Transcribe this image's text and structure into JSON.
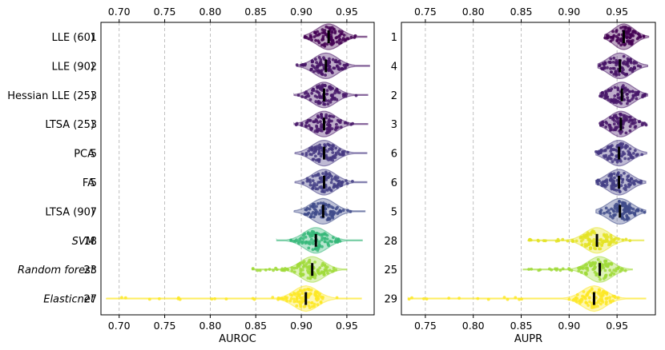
{
  "chart_data": [
    {
      "type": "violin",
      "xlabel": "AUROC",
      "xlim": [
        0.68,
        0.98
      ],
      "xticks": [
        0.7,
        0.75,
        0.8,
        0.85,
        0.9,
        0.95
      ],
      "xtick_labels": [
        "0.70",
        "0.75",
        "0.80",
        "0.85",
        "0.90",
        "0.95"
      ],
      "grid": "vertical-dashed",
      "rows": [
        {
          "method": "LLE (60)",
          "italic": false,
          "rank": "1",
          "median": 0.93,
          "min": 0.903,
          "max": 0.972,
          "color": "#440154"
        },
        {
          "method": "LLE (90)",
          "italic": false,
          "rank": "2",
          "median": 0.927,
          "min": 0.895,
          "max": 0.975,
          "color": "#471466"
        },
        {
          "method": "Hessian LLE (25)",
          "italic": false,
          "rank": "3",
          "median": 0.925,
          "min": 0.892,
          "max": 0.973,
          "color": "#48186a"
        },
        {
          "method": "LTSA (25)",
          "italic": false,
          "rank": "3",
          "median": 0.925,
          "min": 0.892,
          "max": 0.973,
          "color": "#48186a"
        },
        {
          "method": "PCA",
          "italic": false,
          "rank": "5",
          "median": 0.925,
          "min": 0.893,
          "max": 0.972,
          "color": "#453781"
        },
        {
          "method": "FA",
          "italic": false,
          "rank": "5",
          "median": 0.925,
          "min": 0.893,
          "max": 0.972,
          "color": "#433e85"
        },
        {
          "method": "LTSA (90)",
          "italic": false,
          "rank": "7",
          "median": 0.924,
          "min": 0.892,
          "max": 0.97,
          "color": "#3e4a89"
        },
        {
          "method": "SVM",
          "italic": true,
          "rank": "18",
          "median": 0.916,
          "min": 0.873,
          "max": 0.967,
          "color": "#35b779"
        },
        {
          "method": "Random forest",
          "italic": true,
          "rank": "23",
          "median": 0.912,
          "min": 0.846,
          "max": 0.95,
          "color": "#a0da39"
        },
        {
          "method": "Elasticnet",
          "italic": true,
          "rank": "27",
          "median": 0.905,
          "min": 0.686,
          "max": 0.966,
          "color": "#fde725"
        }
      ]
    },
    {
      "type": "violin",
      "xlabel": "AUPR",
      "xlim": [
        0.725,
        0.99
      ],
      "xticks": [
        0.75,
        0.8,
        0.85,
        0.9,
        0.95
      ],
      "xtick_labels": [
        "0.75",
        "0.80",
        "0.85",
        "0.90",
        "0.95"
      ],
      "grid": "vertical-dashed",
      "rows": [
        {
          "method": "LLE (60)",
          "rank": "1",
          "median": 0.957,
          "min": 0.937,
          "max": 0.983,
          "color": "#440154"
        },
        {
          "method": "LLE (90)",
          "rank": "4",
          "median": 0.953,
          "min": 0.93,
          "max": 0.982,
          "color": "#471466"
        },
        {
          "method": "Hessian LLE (25)",
          "rank": "2",
          "median": 0.955,
          "min": 0.932,
          "max": 0.982,
          "color": "#48186a"
        },
        {
          "method": "LTSA (25)",
          "rank": "3",
          "median": 0.954,
          "min": 0.932,
          "max": 0.981,
          "color": "#48186a"
        },
        {
          "method": "PCA",
          "rank": "6",
          "median": 0.952,
          "min": 0.928,
          "max": 0.981,
          "color": "#453781"
        },
        {
          "method": "FA",
          "rank": "6",
          "median": 0.952,
          "min": 0.928,
          "max": 0.98,
          "color": "#433e85"
        },
        {
          "method": "LTSA (90)",
          "rank": "5",
          "median": 0.953,
          "min": 0.928,
          "max": 0.98,
          "color": "#3e4a89"
        },
        {
          "method": "SVM",
          "rank": "28",
          "median": 0.929,
          "min": 0.857,
          "max": 0.978,
          "color": "#e4e324"
        },
        {
          "method": "Random forest",
          "rank": "25",
          "median": 0.932,
          "min": 0.852,
          "max": 0.966,
          "color": "#a0da39"
        },
        {
          "method": "Elasticnet",
          "rank": "29",
          "median": 0.926,
          "min": 0.732,
          "max": 0.98,
          "color": "#fde725"
        }
      ]
    }
  ]
}
